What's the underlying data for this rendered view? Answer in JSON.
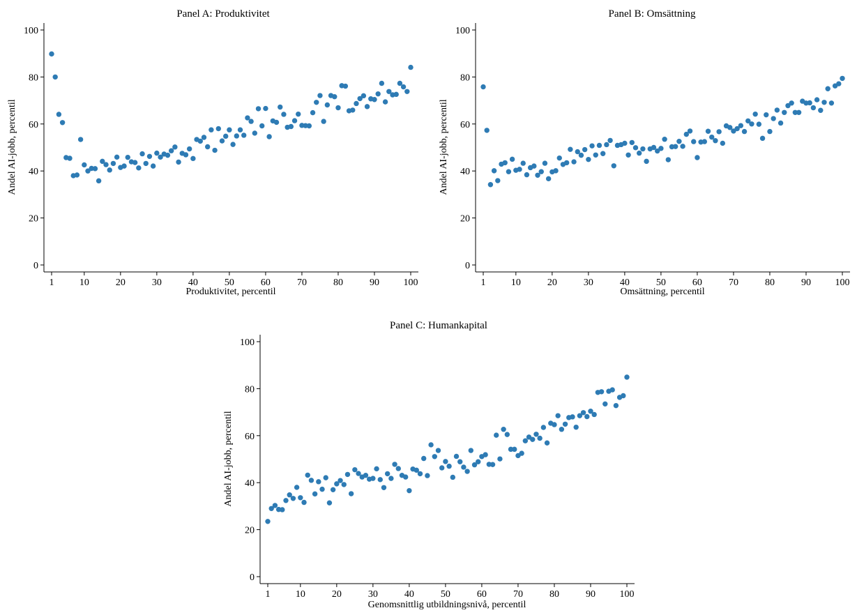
{
  "colors": {
    "marker": "#2e7bb4",
    "axis": "#000000",
    "background": "#ffffff"
  },
  "chart_data": [
    {
      "type": "scatter",
      "title": "Panel A: Produktivitet",
      "xlabel": "Produktivitet, percentil",
      "ylabel": "Andel AI-jobb, percentil",
      "xlim": [
        1,
        100
      ],
      "ylim": [
        0,
        100
      ],
      "xticks": [
        1,
        10,
        20,
        30,
        40,
        50,
        60,
        70,
        80,
        90,
        100
      ],
      "yticks": [
        0,
        20,
        40,
        60,
        80,
        100
      ],
      "grid": false,
      "x": [
        1,
        2,
        3,
        4,
        5,
        6,
        7,
        8,
        9,
        10,
        11,
        12,
        13,
        14,
        15,
        16,
        17,
        18,
        19,
        20,
        21,
        22,
        23,
        24,
        25,
        26,
        27,
        28,
        29,
        30,
        31,
        32,
        33,
        34,
        35,
        36,
        37,
        38,
        39,
        40,
        41,
        42,
        43,
        44,
        45,
        46,
        47,
        48,
        49,
        50,
        51,
        52,
        53,
        54,
        55,
        56,
        57,
        58,
        59,
        60,
        61,
        62,
        63,
        64,
        65,
        66,
        67,
        68,
        69,
        70,
        71,
        72,
        73,
        74,
        75,
        76,
        77,
        78,
        79,
        80,
        81,
        82,
        83,
        84,
        85,
        86,
        87,
        88,
        89,
        90,
        91,
        92,
        93,
        94,
        95,
        96,
        97,
        98,
        99,
        100
      ],
      "y": [
        89.8,
        80.0,
        64.1,
        60.6,
        45.7,
        45.4,
        38.0,
        38.3,
        53.4,
        42.6,
        40.0,
        41.1,
        41.0,
        35.8,
        44.1,
        42.7,
        40.4,
        43.2,
        45.9,
        41.5,
        42.1,
        45.8,
        43.9,
        43.6,
        41.3,
        47.3,
        43.2,
        46.2,
        42.1,
        47.6,
        45.9,
        47.2,
        46.7,
        48.6,
        50.2,
        43.8,
        47.5,
        46.9,
        49.4,
        45.3,
        53.4,
        52.7,
        54.3,
        50.3,
        57.5,
        48.8,
        58.0,
        52.8,
        54.8,
        57.5,
        51.3,
        54.9,
        57.5,
        55.2,
        62.6,
        61.1,
        56.1,
        66.5,
        59.2,
        66.6,
        54.6,
        61.3,
        60.7,
        67.2,
        64.1,
        58.6,
        58.9,
        61.4,
        64.2,
        59.4,
        59.3,
        59.2,
        64.8,
        69.2,
        72.1,
        61.1,
        68.1,
        72.1,
        71.6,
        66.9,
        76.3,
        76.1,
        65.6,
        65.9,
        68.7,
        70.8,
        72.0,
        67.4,
        70.7,
        70.4,
        72.8,
        77.3,
        69.4,
        73.8,
        72.4,
        72.6,
        77.3,
        75.8,
        73.8,
        84.1
      ]
    },
    {
      "type": "scatter",
      "title": "Panel B: Omsättning",
      "xlabel": "Omsättning, percentil",
      "ylabel": "Andel AI-jobb, percentil",
      "xlim": [
        1,
        100
      ],
      "ylim": [
        0,
        100
      ],
      "xticks": [
        1,
        10,
        20,
        30,
        40,
        50,
        60,
        70,
        80,
        90,
        100
      ],
      "yticks": [
        0,
        20,
        40,
        60,
        80,
        100
      ],
      "grid": false,
      "x": [
        1,
        2,
        3,
        4,
        5,
        6,
        7,
        8,
        9,
        10,
        11,
        12,
        13,
        14,
        15,
        16,
        17,
        18,
        19,
        20,
        21,
        22,
        23,
        24,
        25,
        26,
        27,
        28,
        29,
        30,
        31,
        32,
        33,
        34,
        35,
        36,
        37,
        38,
        39,
        40,
        41,
        42,
        43,
        44,
        45,
        46,
        47,
        48,
        49,
        50,
        51,
        52,
        53,
        54,
        55,
        56,
        57,
        58,
        59,
        60,
        61,
        62,
        63,
        64,
        65,
        66,
        67,
        68,
        69,
        70,
        71,
        72,
        73,
        74,
        75,
        76,
        77,
        78,
        79,
        80,
        81,
        82,
        83,
        84,
        85,
        86,
        87,
        88,
        89,
        90,
        91,
        92,
        93,
        94,
        95,
        96,
        97,
        98,
        99,
        100
      ],
      "y": [
        75.8,
        57.3,
        34.2,
        40.1,
        35.9,
        42.9,
        43.5,
        39.7,
        45.0,
        40.3,
        40.7,
        43.3,
        38.4,
        41.4,
        42.1,
        38.2,
        39.7,
        43.3,
        36.7,
        39.6,
        40.1,
        45.5,
        42.8,
        43.5,
        49.2,
        43.9,
        48.2,
        46.7,
        49.1,
        44.9,
        50.7,
        46.8,
        50.9,
        47.4,
        51.2,
        53.0,
        42.2,
        50.9,
        51.2,
        51.8,
        46.8,
        52.1,
        49.9,
        47.6,
        49.4,
        44.1,
        49.4,
        50.0,
        48.5,
        49.6,
        53.5,
        44.8,
        50.3,
        50.4,
        52.6,
        50.5,
        55.6,
        57.0,
        52.5,
        45.7,
        52.3,
        52.5,
        56.9,
        54.4,
        52.9,
        56.7,
        51.8,
        59.2,
        58.5,
        57.0,
        58.0,
        59.3,
        56.8,
        61.3,
        60.0,
        64.2,
        59.9,
        53.9,
        63.9,
        56.8,
        62.3,
        65.9,
        60.4,
        64.9,
        67.8,
        68.9,
        64.9,
        64.9,
        69.7,
        68.9,
        69.0,
        66.9,
        70.3,
        65.8,
        69.2,
        75.0,
        68.9,
        76.2,
        77.1,
        79.4
      ]
    },
    {
      "type": "scatter",
      "title": "Panel C: Humankapital",
      "xlabel": "Genomsnittlig utbildningsnivå, percentil",
      "ylabel": "Andel AI-jobb, percentil",
      "xlim": [
        1,
        100
      ],
      "ylim": [
        0,
        100
      ],
      "xticks": [
        1,
        10,
        20,
        30,
        40,
        50,
        60,
        70,
        80,
        90,
        100
      ],
      "yticks": [
        0,
        20,
        40,
        60,
        80,
        100
      ],
      "grid": false,
      "x": [
        1,
        2,
        3,
        4,
        5,
        6,
        7,
        8,
        9,
        10,
        11,
        12,
        13,
        14,
        15,
        16,
        17,
        18,
        19,
        20,
        21,
        22,
        23,
        24,
        25,
        26,
        27,
        28,
        29,
        30,
        31,
        32,
        33,
        34,
        35,
        36,
        37,
        38,
        39,
        40,
        41,
        42,
        43,
        44,
        45,
        46,
        47,
        48,
        49,
        50,
        51,
        52,
        53,
        54,
        55,
        56,
        57,
        58,
        59,
        60,
        61,
        62,
        63,
        64,
        65,
        66,
        67,
        68,
        69,
        70,
        71,
        72,
        73,
        74,
        75,
        76,
        77,
        78,
        79,
        80,
        81,
        82,
        83,
        84,
        85,
        86,
        87,
        88,
        89,
        90,
        91,
        92,
        93,
        94,
        95,
        96,
        97,
        98,
        99,
        100
      ],
      "y": [
        23.5,
        29.0,
        30.3,
        28.6,
        28.5,
        32.4,
        34.8,
        33.3,
        38.0,
        33.6,
        31.6,
        43.2,
        41.0,
        35.2,
        40.4,
        37.2,
        42.1,
        31.4,
        37.0,
        39.5,
        40.9,
        39.2,
        43.5,
        35.3,
        45.5,
        43.9,
        42.4,
        43.1,
        41.5,
        41.8,
        45.9,
        41.3,
        37.9,
        43.8,
        41.8,
        47.8,
        46.0,
        43.1,
        42.4,
        36.6,
        45.8,
        45.3,
        43.8,
        50.3,
        43.0,
        56.1,
        51.1,
        53.7,
        46.3,
        49.0,
        47.0,
        42.3,
        51.2,
        48.9,
        46.6,
        44.8,
        53.7,
        47.6,
        48.9,
        51.1,
        51.9,
        47.8,
        47.7,
        60.2,
        50.1,
        62.7,
        60.5,
        54.2,
        54.2,
        51.5,
        52.5,
        57.8,
        59.4,
        58.4,
        60.6,
        58.9,
        63.5,
        56.9,
        65.3,
        64.7,
        68.5,
        62.7,
        64.9,
        67.7,
        68.0,
        63.6,
        68.5,
        69.8,
        68.1,
        70.4,
        69.0,
        78.4,
        78.7,
        73.5,
        78.9,
        79.5,
        72.8,
        76.3,
        77.0,
        84.9
      ]
    }
  ]
}
